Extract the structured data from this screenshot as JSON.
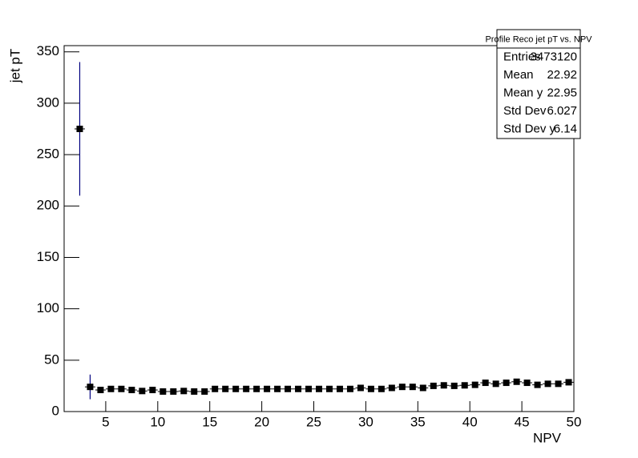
{
  "chart_data": {
    "type": "profile",
    "x_label": "NPV",
    "y_label": "jet pT",
    "xlim": [
      1,
      50
    ],
    "ylim": [
      0,
      356
    ],
    "xticks": [
      5,
      10,
      15,
      20,
      25,
      30,
      35,
      40,
      45,
      50
    ],
    "yticks": [
      0,
      50,
      100,
      150,
      200,
      250,
      300,
      350
    ],
    "color": "#000000",
    "error_color": "#000080",
    "x": [
      2.5,
      3.5,
      4.5,
      5.5,
      6.5,
      7.5,
      8.5,
      9.5,
      10.5,
      11.5,
      12.5,
      13.5,
      14.5,
      15.5,
      16.5,
      17.5,
      18.5,
      19.5,
      20.5,
      21.5,
      22.5,
      23.5,
      24.5,
      25.5,
      26.5,
      27.5,
      28.5,
      29.5,
      30.5,
      31.5,
      32.5,
      33.5,
      34.5,
      35.5,
      36.5,
      37.5,
      38.5,
      39.5,
      40.5,
      41.5,
      42.5,
      43.5,
      44.5,
      45.5,
      46.5,
      47.5,
      48.5,
      49.5
    ],
    "values": [
      275,
      24,
      21,
      22,
      22,
      21,
      20,
      21,
      19.5,
      19.5,
      20,
      19.5,
      19.5,
      22,
      22,
      22,
      22,
      22,
      22,
      22,
      22,
      22,
      22,
      22,
      22,
      22,
      22,
      23,
      22,
      22,
      23,
      24,
      24,
      23,
      25,
      25.5,
      25,
      25.5,
      26,
      28,
      27,
      28,
      29,
      28,
      26,
      27,
      27,
      28.5
    ],
    "errors": [
      65,
      12,
      1,
      1,
      1,
      1,
      1,
      1,
      1,
      1,
      1,
      1,
      1,
      1,
      1,
      1,
      1,
      1,
      1,
      1,
      1,
      1,
      1,
      1,
      1,
      1,
      1,
      1,
      1,
      1,
      1,
      1,
      1,
      1,
      1,
      1,
      1,
      1,
      1,
      1,
      1,
      1,
      1,
      1,
      1,
      1,
      1,
      1
    ],
    "stats": {
      "title": "Profile Reco jet pT vs. NPV",
      "rows": [
        [
          "Entries",
          3473120
        ],
        [
          "Mean",
          22.92
        ],
        [
          "Mean y",
          22.95
        ],
        [
          "Std Dev",
          6.027
        ],
        [
          "Std Dev y",
          6.14
        ]
      ]
    }
  }
}
